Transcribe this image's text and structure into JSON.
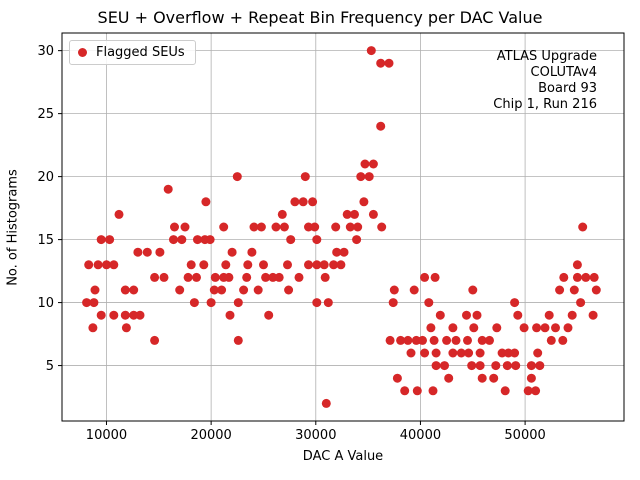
{
  "title": "SEU + Overflow + Repeat Bin Frequency per DAC Value",
  "legend": {
    "label": "Flagged SEUs"
  },
  "annotation": {
    "lines": [
      "ATLAS Upgrade",
      "COLUTAv4",
      "Board 93",
      "Chip 1, Run 216"
    ]
  },
  "colors": {
    "marker": "#d62728",
    "grid": "#b0b0b0",
    "spine": "#000000"
  },
  "chart_data": {
    "type": "scatter",
    "title": "SEU + Overflow + Repeat Bin Frequency per DAC Value",
    "xlabel": "DAC A Value",
    "ylabel": "No. of Histograms",
    "xlim": [
      5750,
      59450
    ],
    "ylim": [
      0.6,
      31.4
    ],
    "xticks": [
      10000,
      20000,
      30000,
      40000,
      50000
    ],
    "yticks": [
      5,
      10,
      15,
      20,
      25,
      30
    ],
    "grid": true,
    "legend_position": "upper left",
    "marker_color": "#d62728",
    "series": [
      {
        "name": "Flagged SEUs",
        "points": [
          [
            8100,
            10
          ],
          [
            8300,
            13
          ],
          [
            8700,
            8
          ],
          [
            8800,
            10
          ],
          [
            8900,
            11
          ],
          [
            9200,
            13
          ],
          [
            9500,
            15
          ],
          [
            9500,
            9
          ],
          [
            10000,
            13
          ],
          [
            10300,
            15
          ],
          [
            10700,
            13
          ],
          [
            10700,
            9
          ],
          [
            11200,
            17
          ],
          [
            11800,
            11
          ],
          [
            11800,
            9
          ],
          [
            11900,
            8
          ],
          [
            12600,
            11
          ],
          [
            12600,
            9
          ],
          [
            13000,
            14
          ],
          [
            13200,
            9
          ],
          [
            13900,
            14
          ],
          [
            14600,
            12
          ],
          [
            14600,
            7
          ],
          [
            15100,
            14
          ],
          [
            15500,
            12
          ],
          [
            15900,
            19
          ],
          [
            16400,
            15
          ],
          [
            16500,
            16
          ],
          [
            17000,
            11
          ],
          [
            17200,
            15
          ],
          [
            17500,
            16
          ],
          [
            17800,
            12
          ],
          [
            18100,
            13
          ],
          [
            18400,
            10
          ],
          [
            18600,
            12
          ],
          [
            18700,
            15
          ],
          [
            19300,
            13
          ],
          [
            19400,
            15
          ],
          [
            19500,
            18
          ],
          [
            19900,
            15
          ],
          [
            20000,
            10
          ],
          [
            20300,
            11
          ],
          [
            20400,
            12
          ],
          [
            21000,
            11
          ],
          [
            21200,
            12
          ],
          [
            21200,
            16
          ],
          [
            21400,
            13
          ],
          [
            21700,
            12
          ],
          [
            21800,
            9
          ],
          [
            22000,
            14
          ],
          [
            22500,
            20
          ],
          [
            22600,
            10
          ],
          [
            22600,
            7
          ],
          [
            23100,
            11
          ],
          [
            23400,
            12
          ],
          [
            23500,
            13
          ],
          [
            23900,
            14
          ],
          [
            24100,
            16
          ],
          [
            24500,
            11
          ],
          [
            24800,
            16
          ],
          [
            25000,
            13
          ],
          [
            25200,
            12
          ],
          [
            25500,
            9
          ],
          [
            25900,
            12
          ],
          [
            26200,
            16
          ],
          [
            26500,
            12
          ],
          [
            26800,
            17
          ],
          [
            27000,
            16
          ],
          [
            27300,
            13
          ],
          [
            27400,
            11
          ],
          [
            27600,
            15
          ],
          [
            28000,
            18
          ],
          [
            28400,
            12
          ],
          [
            28800,
            18
          ],
          [
            29000,
            20
          ],
          [
            29300,
            13
          ],
          [
            29300,
            16
          ],
          [
            29700,
            18
          ],
          [
            29900,
            16
          ],
          [
            30100,
            10
          ],
          [
            30100,
            13
          ],
          [
            30100,
            15
          ],
          [
            30800,
            13
          ],
          [
            30900,
            12
          ],
          [
            31000,
            2
          ],
          [
            31200,
            10
          ],
          [
            31700,
            13
          ],
          [
            31900,
            16
          ],
          [
            32000,
            14
          ],
          [
            32400,
            13
          ],
          [
            32700,
            14
          ],
          [
            33000,
            17
          ],
          [
            33300,
            16
          ],
          [
            33700,
            17
          ],
          [
            33900,
            15
          ],
          [
            34000,
            16
          ],
          [
            34300,
            20
          ],
          [
            34600,
            18
          ],
          [
            34700,
            21
          ],
          [
            35100,
            20
          ],
          [
            35300,
            30
          ],
          [
            35500,
            21
          ],
          [
            35500,
            17
          ],
          [
            36200,
            29
          ],
          [
            36200,
            24
          ],
          [
            36300,
            16
          ],
          [
            37000,
            29
          ],
          [
            37100,
            7
          ],
          [
            37400,
            10
          ],
          [
            37500,
            11
          ],
          [
            37800,
            4
          ],
          [
            38100,
            7
          ],
          [
            38500,
            3
          ],
          [
            38800,
            7
          ],
          [
            39100,
            6
          ],
          [
            39400,
            11
          ],
          [
            39600,
            7
          ],
          [
            39700,
            3
          ],
          [
            40200,
            7
          ],
          [
            40400,
            12
          ],
          [
            40400,
            6
          ],
          [
            40800,
            10
          ],
          [
            41000,
            8
          ],
          [
            41200,
            3
          ],
          [
            41300,
            7
          ],
          [
            41400,
            12
          ],
          [
            41500,
            6
          ],
          [
            41500,
            5
          ],
          [
            41900,
            9
          ],
          [
            42300,
            5
          ],
          [
            42500,
            7
          ],
          [
            42700,
            4
          ],
          [
            43100,
            8
          ],
          [
            43100,
            6
          ],
          [
            43400,
            7
          ],
          [
            43900,
            6
          ],
          [
            44400,
            9
          ],
          [
            44500,
            7
          ],
          [
            44600,
            6
          ],
          [
            44900,
            5
          ],
          [
            45000,
            11
          ],
          [
            45100,
            8
          ],
          [
            45400,
            9
          ],
          [
            45700,
            6
          ],
          [
            45700,
            5
          ],
          [
            45900,
            7
          ],
          [
            45900,
            4
          ],
          [
            46600,
            7
          ],
          [
            47000,
            4
          ],
          [
            47200,
            5
          ],
          [
            47300,
            8
          ],
          [
            47800,
            6
          ],
          [
            48100,
            3
          ],
          [
            48300,
            5
          ],
          [
            48400,
            6
          ],
          [
            49000,
            10
          ],
          [
            49000,
            6
          ],
          [
            49100,
            5
          ],
          [
            49300,
            9
          ],
          [
            49900,
            8
          ],
          [
            50300,
            3
          ],
          [
            50600,
            5
          ],
          [
            50600,
            4
          ],
          [
            51000,
            3
          ],
          [
            51100,
            8
          ],
          [
            51200,
            6
          ],
          [
            51400,
            5
          ],
          [
            51900,
            8
          ],
          [
            52300,
            9
          ],
          [
            52500,
            7
          ],
          [
            52900,
            8
          ],
          [
            53300,
            11
          ],
          [
            53600,
            7
          ],
          [
            53700,
            12
          ],
          [
            54100,
            8
          ],
          [
            54500,
            9
          ],
          [
            54700,
            11
          ],
          [
            55000,
            13
          ],
          [
            55000,
            12
          ],
          [
            55300,
            10
          ],
          [
            55500,
            16
          ],
          [
            55800,
            12
          ],
          [
            56500,
            9
          ],
          [
            56600,
            12
          ],
          [
            56800,
            11
          ]
        ]
      }
    ]
  }
}
